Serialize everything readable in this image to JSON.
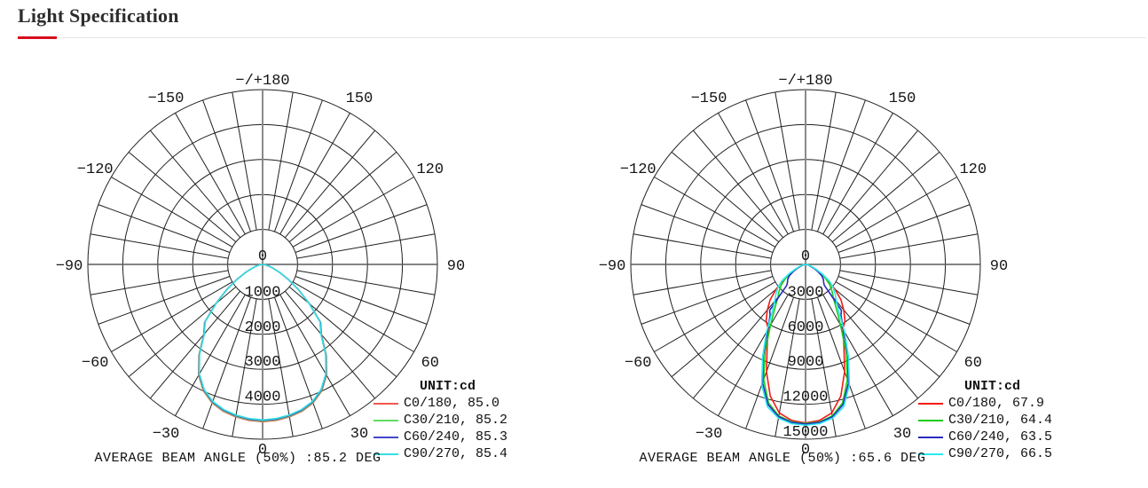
{
  "header": {
    "title": "Light Specification",
    "accent_color": "#d8101e",
    "rule_color": "#e7e7e7"
  },
  "chart_data": [
    {
      "type": "polar",
      "name": "left-photometric-diagram",
      "unit": "cd",
      "max_value": 5000,
      "rings": [
        1000,
        2000,
        3000,
        4000,
        5000
      ],
      "labeled_rings": [
        1000,
        2000,
        3000,
        4000
      ],
      "ring_label_texts": [
        "1000",
        "2000",
        "3000",
        "4000"
      ],
      "center_label": "0",
      "angle_step_deg": 10,
      "angle_labels": [
        {
          "text": "−/+180",
          "angle": 180
        },
        {
          "text": "−150",
          "angle": -150
        },
        {
          "text": "150",
          "angle": 150
        },
        {
          "text": "−120",
          "angle": -120
        },
        {
          "text": "120",
          "angle": 120
        },
        {
          "text": "−90",
          "angle": -90
        },
        {
          "text": "90",
          "angle": 90
        },
        {
          "text": "−60",
          "angle": -60
        },
        {
          "text": "60",
          "angle": 60
        },
        {
          "text": "−30",
          "angle": -30
        },
        {
          "text": "30",
          "angle": 30
        },
        {
          "text": "0",
          "angle": 0
        }
      ],
      "legend": {
        "title": "UNIT:cd",
        "entries": [
          {
            "label": "C0/180, 85.0",
            "color": "#f25750"
          },
          {
            "label": "C30/210, 85.2",
            "color": "#5ede5e"
          },
          {
            "label": "C60/240, 85.3",
            "color": "#4646c8"
          },
          {
            "label": "C90/270, 85.4",
            "color": "#35dfe4"
          }
        ]
      },
      "base_points": [
        [
          0,
          4500
        ],
        [
          5,
          4480
        ],
        [
          10,
          4430
        ],
        [
          15,
          4350
        ],
        [
          20,
          4220
        ],
        [
          25,
          4000
        ],
        [
          30,
          3660
        ],
        [
          35,
          3180
        ],
        [
          40,
          2620
        ],
        [
          45,
          2350
        ],
        [
          50,
          1750
        ],
        [
          55,
          1250
        ],
        [
          60,
          830
        ],
        [
          65,
          530
        ],
        [
          70,
          320
        ],
        [
          75,
          185
        ],
        [
          80,
          95
        ],
        [
          85,
          40
        ],
        [
          90,
          0
        ]
      ],
      "series": [
        {
          "name": "C0/180",
          "beam_angle_deg": 85.0,
          "color": "#f25750",
          "scale": 1.0
        },
        {
          "name": "C30/210",
          "beam_angle_deg": 85.2,
          "color": "#5ede5e",
          "scale": 0.996
        },
        {
          "name": "C60/240",
          "beam_angle_deg": 85.3,
          "color": "#4646c8",
          "scale": 0.992
        },
        {
          "name": "C90/270",
          "beam_angle_deg": 85.4,
          "color": "#35dfe4",
          "scale": 0.988
        }
      ],
      "average_beam_angle_50_deg": 85.2,
      "footer": "AVERAGE BEAM ANGLE (50%) :85.2 DEG"
    },
    {
      "type": "polar",
      "name": "right-photometric-diagram",
      "unit": "cd",
      "max_value": 15000,
      "rings": [
        3000,
        6000,
        9000,
        12000,
        15000
      ],
      "labeled_rings": [
        3000,
        6000,
        9000,
        12000,
        15000
      ],
      "ring_label_texts": [
        "3000",
        "6000",
        "9000",
        "12000",
        "15000"
      ],
      "center_label": "0",
      "angle_step_deg": 10,
      "angle_labels": [
        {
          "text": "−/+180",
          "angle": 180
        },
        {
          "text": "−150",
          "angle": -150
        },
        {
          "text": "150",
          "angle": 150
        },
        {
          "text": "−120",
          "angle": -120
        },
        {
          "text": "120",
          "angle": 120
        },
        {
          "text": "−90",
          "angle": -90
        },
        {
          "text": "90",
          "angle": 90
        },
        {
          "text": "−60",
          "angle": -60
        },
        {
          "text": "60",
          "angle": 60
        },
        {
          "text": "−30",
          "angle": -30
        },
        {
          "text": "30",
          "angle": 30
        },
        {
          "text": "0",
          "angle": 0
        }
      ],
      "legend": {
        "title": "UNIT:cd",
        "entries": [
          {
            "label": "C0/180, 67.9",
            "color": "#f21b13"
          },
          {
            "label": "C30/210, 64.4",
            "color": "#1ecb1e"
          },
          {
            "label": "C60/240, 63.5",
            "color": "#2b2bbf"
          },
          {
            "label": "C90/270, 66.5",
            "color": "#2aeaf0"
          }
        ]
      },
      "series": [
        {
          "name": "C0/180",
          "beam_angle_deg": 67.9,
          "color": "#f21b13",
          "points": [
            [
              0,
              13600
            ],
            [
              5,
              13450
            ],
            [
              10,
              12950
            ],
            [
              15,
              11700
            ],
            [
              20,
              9800
            ],
            [
              25,
              7800
            ],
            [
              30,
              6400
            ],
            [
              35,
              5900
            ],
            [
              40,
              5100
            ],
            [
              45,
              4300
            ],
            [
              50,
              3300
            ],
            [
              55,
              2200
            ],
            [
              60,
              1300
            ],
            [
              65,
              750
            ],
            [
              70,
              450
            ],
            [
              75,
              280
            ],
            [
              80,
              160
            ],
            [
              85,
              70
            ],
            [
              90,
              0
            ]
          ]
        },
        {
          "name": "C30/210",
          "beam_angle_deg": 64.4,
          "color": "#1ecb1e",
          "points": [
            [
              0,
              13650
            ],
            [
              5,
              13570
            ],
            [
              10,
              13200
            ],
            [
              15,
              12300
            ],
            [
              20,
              10500
            ],
            [
              25,
              8200
            ],
            [
              30,
              6000
            ],
            [
              35,
              4600
            ],
            [
              40,
              3700
            ],
            [
              45,
              3200
            ],
            [
              50,
              2700
            ],
            [
              55,
              2100
            ],
            [
              60,
              1400
            ],
            [
              65,
              850
            ],
            [
              70,
              500
            ],
            [
              75,
              300
            ],
            [
              80,
              160
            ],
            [
              85,
              70
            ],
            [
              90,
              0
            ]
          ]
        },
        {
          "name": "C60/240",
          "beam_angle_deg": 63.5,
          "color": "#2b2bbf",
          "points": [
            [
              0,
              13700
            ],
            [
              5,
              13620
            ],
            [
              10,
              13280
            ],
            [
              15,
              12450
            ],
            [
              20,
              10800
            ],
            [
              25,
              8600
            ],
            [
              30,
              6500
            ],
            [
              35,
              5300
            ],
            [
              38,
              5000
            ],
            [
              42,
              2400
            ],
            [
              45,
              2200
            ],
            [
              50,
              2000
            ],
            [
              55,
              1700
            ],
            [
              60,
              1200
            ],
            [
              65,
              800
            ],
            [
              70,
              480
            ],
            [
              75,
              290
            ],
            [
              80,
              150
            ],
            [
              85,
              65
            ],
            [
              90,
              0
            ]
          ]
        },
        {
          "name": "C90/270",
          "beam_angle_deg": 66.5,
          "color": "#2aeaf0",
          "points": [
            [
              0,
              13800
            ],
            [
              5,
              13720
            ],
            [
              10,
              13400
            ],
            [
              15,
              12650
            ],
            [
              20,
              11000
            ],
            [
              25,
              8700
            ],
            [
              30,
              6700
            ],
            [
              35,
              5000
            ],
            [
              40,
              4100
            ],
            [
              45,
              3600
            ],
            [
              50,
              3100
            ],
            [
              55,
              2500
            ],
            [
              60,
              1700
            ],
            [
              65,
              1000
            ],
            [
              70,
              600
            ],
            [
              75,
              350
            ],
            [
              80,
              180
            ],
            [
              85,
              75
            ],
            [
              90,
              0
            ]
          ]
        }
      ],
      "average_beam_angle_50_deg": 65.6,
      "footer": "AVERAGE BEAM ANGLE (50%) :65.6 DEG"
    }
  ]
}
